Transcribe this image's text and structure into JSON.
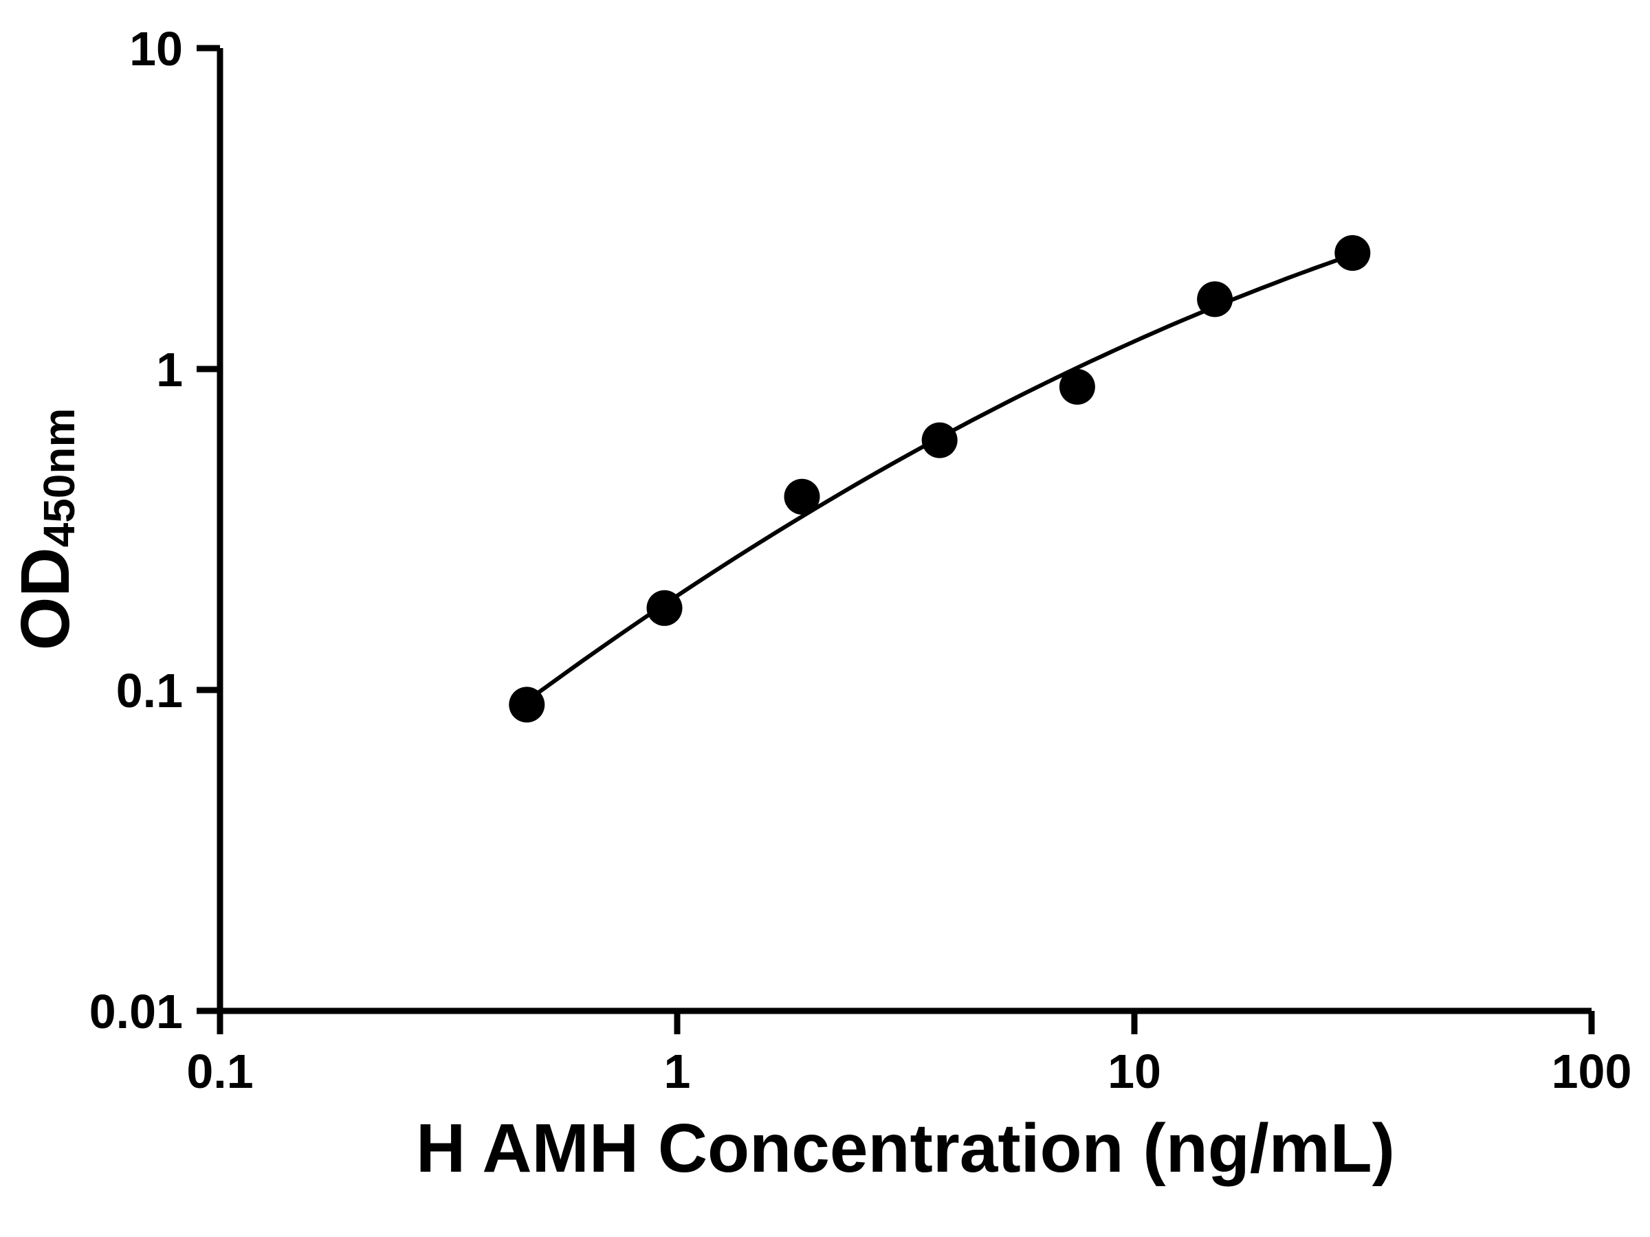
{
  "figure": {
    "background": "#ffffff",
    "foreground": "#000000"
  },
  "chart_data": {
    "type": "scatter",
    "title": "",
    "xlabel": "H AMH Concentration (ng/mL)",
    "ylabel": "OD450nm",
    "ylabel_main": "OD",
    "ylabel_sub": "450nm",
    "x_scale": "log",
    "y_scale": "log",
    "xlim": [
      0.1,
      100
    ],
    "ylim": [
      0.01,
      10
    ],
    "x_ticks": [
      0.1,
      1,
      10,
      100
    ],
    "x_tick_labels": [
      "0.1",
      "1",
      "10",
      "100"
    ],
    "y_ticks": [
      0.01,
      0.1,
      1,
      10
    ],
    "y_tick_labels": [
      "0.01",
      "0.1",
      "1",
      "10"
    ],
    "grid": false,
    "legend": false,
    "marker_color": "#000000",
    "line_color": "#000000",
    "series": [
      {
        "marker": "circle",
        "color": "#000000",
        "points": [
          {
            "x": 0.469,
            "y": 0.09
          },
          {
            "x": 0.938,
            "y": 0.18
          },
          {
            "x": 1.875,
            "y": 0.4
          },
          {
            "x": 3.75,
            "y": 0.6
          },
          {
            "x": 7.5,
            "y": 0.88
          },
          {
            "x": 15,
            "y": 1.65
          },
          {
            "x": 30,
            "y": 2.3
          }
        ]
      }
    ],
    "fit_curve": {
      "type": "quadratic-loglog",
      "x_range": [
        0.44,
        30
      ],
      "color": "#000000"
    }
  }
}
